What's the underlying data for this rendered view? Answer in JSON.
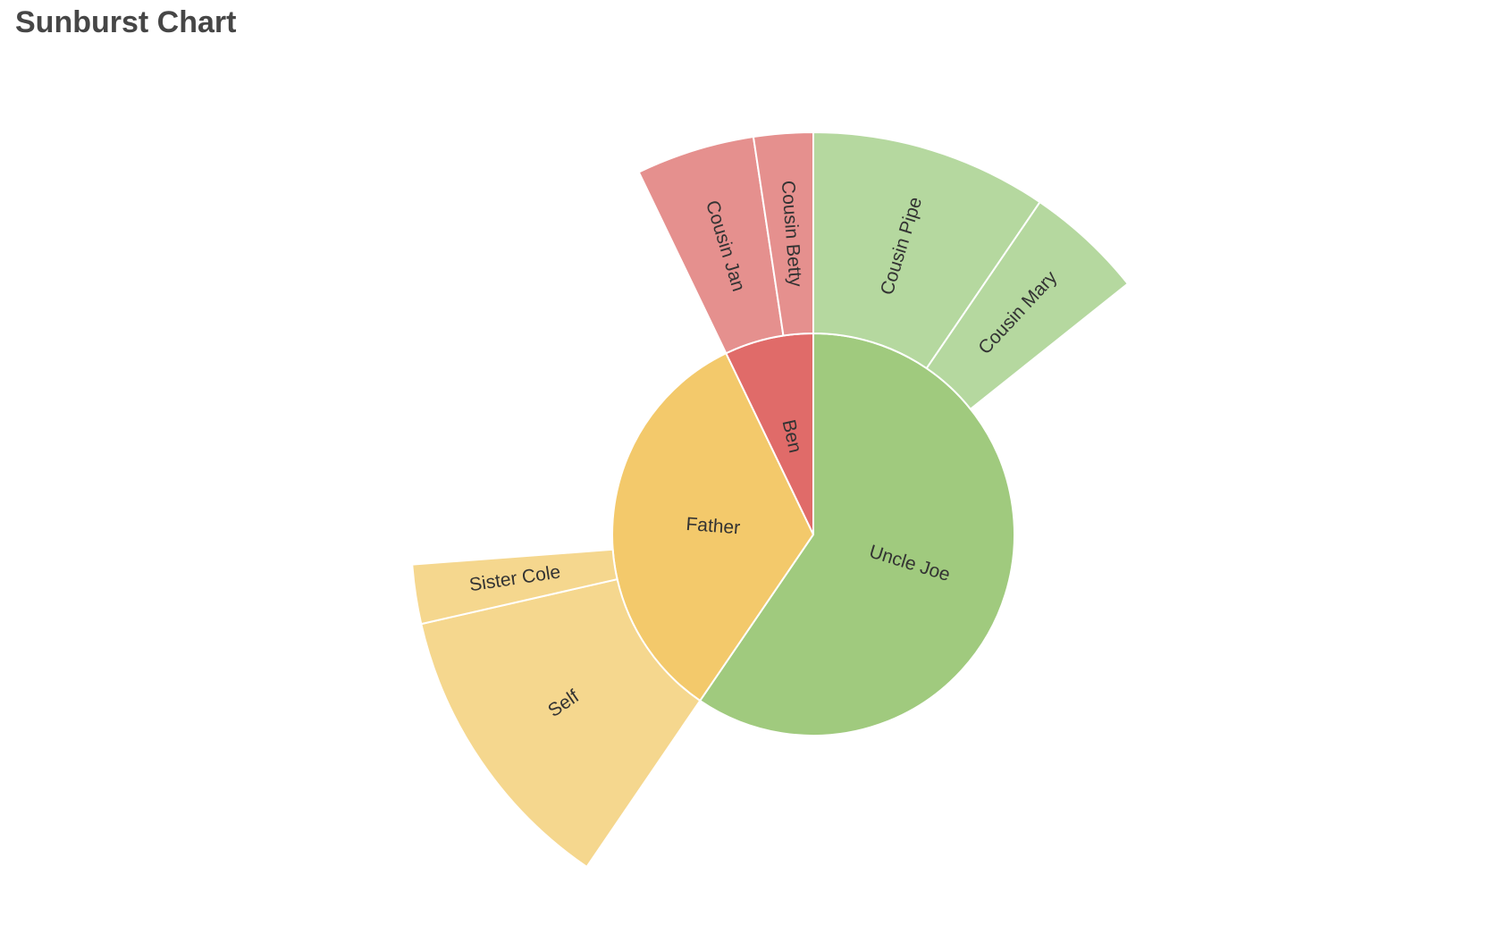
{
  "chart_data": {
    "type": "sunburst",
    "title": "Sunburst Chart",
    "data": [
      {
        "name": "Uncle Joe",
        "value": 25,
        "color": "#a0ca7e",
        "children": [
          {
            "name": "Cousin Pipe",
            "value": 4,
            "color": "#b5d89f"
          },
          {
            "name": "Cousin Mary",
            "value": 2,
            "color": "#b5d89f"
          }
        ]
      },
      {
        "name": "Father",
        "value": 14,
        "color": "#f3c96b",
        "children": [
          {
            "name": "Self",
            "value": 5,
            "color": "#f5d78e"
          },
          {
            "name": "Sister Cole",
            "value": 1,
            "color": "#f5d78e"
          }
        ]
      },
      {
        "name": "Ben",
        "value": 3,
        "color": "#e06b69",
        "children": [
          {
            "name": "Cousin Jan",
            "value": 2,
            "color": "#e5908e"
          },
          {
            "name": "Cousin Betty",
            "value": 1,
            "color": "#e5908e"
          }
        ]
      }
    ]
  }
}
